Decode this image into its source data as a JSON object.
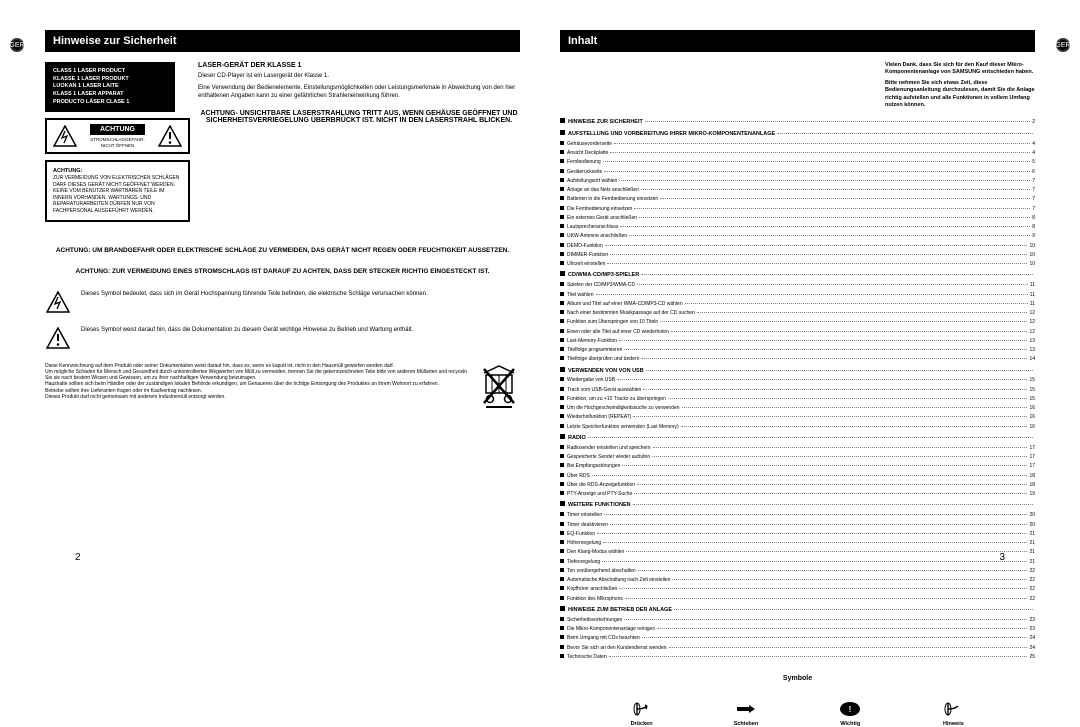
{
  "badge": "GER",
  "left": {
    "header": "Hinweise zur Sicherheit",
    "class1_lines": [
      "CLASS 1 LASER PRODUCT",
      "KLASSE 1 LASER PRODUKT",
      "LUOKAN 1 LASER LAITE",
      "KLASS 1 LASER APPARAT",
      "PRODUCTO LÁSER CLASE 1"
    ],
    "laser_heading": "LASER-GERÄT DER KLASSE 1",
    "laser_p1": "Dieser CD-Player ist ein Lasergerät der Klasse 1.",
    "laser_p2": "Eine Verwendung der Bedienelemente, Einstellungsmöglichkeiten oder Leistungsmerkmale in Abweichung von den hier enthaltenen Angaben kann zu einer gefährlichen Strahleneinwirkung führen.",
    "achtung_label": "ACHTUNG",
    "achtung_sub": "STROMSCHLAGGEFAHR. NICHT ÖFFNEN",
    "achtung_box_bold": "ACHTUNG:",
    "achtung_box_text": "ZUR VERMEIDUNG VON ELEKTRISCHEN SCHLÄGEN DARF DIESES GERÄT NICHT GEÖFFNET WERDEN. KEINE VOM BENUTZER WARTBAREN TEILE IM INNERN VORHANDEN. WARTUNGS- UND REPARATURARBEITEN DÜRFEN NUR VON FACHPERSONAL AUSGEFÜHRT WERDEN.",
    "warn_heading": "ACHTUNG- UNSICHTBARE LASERSTRAHLUNG TRITT AUS, WENN GEHÄUSE GEÖFFNET UND SICHERHEITSVERRIEGELUNG ÜBERBRÜCKT IST. NICHT IN DEN LASERSTRAHL BLICKEN.",
    "warn1": "ACHTUNG: UM BRANDGEFAHR ODER ELEKTRISCHE SCHLÄGE ZU VERMEIDEN, DAS GERÄT NICHT REGEN ODER FEUCHTIGKEIT AUSSETZEN.",
    "warn2": "ACHTUNG: ZUR VERMEIDUNG EINES STROMSCHLAGS IST DARAUF ZU ACHTEN, DASS DER STECKER RICHTIG EINGESTECKT IST.",
    "sym1": "Dieses Symbol bedeutet, dass sich im Gerät Hochspannung führende Teile befinden, die elektrische Schläge verursachen können.",
    "sym2": "Dieses Symbol weist darauf hin, dass die Dokumentation zu diesem Gerät wichtige Hinweise zu Betrieb und Wartung enthält.",
    "disposal": "Diese Kennzeichnung auf dem Produkt oder seiner Dokumentation weist darauf hin, dass es, wenn es kaputt ist, nicht in den Hausmüll geworfen werden darf.\nUm mögliche Schäden für Mensch und Gesundheit durch unkontrolliertes Wegwerfen von Müll zu vermeiden, trennen Sie die gekennzeichneten Teile bitte von anderen Müllarten und recyceln Sie sie nach bestem Wissen und Gewissen, um zu ihrer nachhaltigen Verwendung beizutragen.\nHaushalte sollten sich beim Händler oder der zuständigen lokalen Behörde erkundigen, um Genaueres über die richtige Entsorgung des Produktes an ihrem Wohnort zu erfahren.\nBetriebe sollten ihre Lieferanten fragen oder im Kaufvertrag nachlesen.\nDieses Produkt darf nicht gemeinsam mit anderem Industriemüll entsorgt werden.",
    "page_num": "2"
  },
  "right": {
    "header": "Inhalt",
    "thanks": "Vielen Dank, dass Sie sich für den Kauf dieser Mikro-Komponentenanlage von SAMSUNG entschieden haben.\n\nBitte nehmen Sie sich etwas Zeit, diese Bedienungsanleitung durchzulesen, damit Sie die Anlage richtig aufstellen und alle Funktionen in vollem Umfang nutzen können.",
    "toc": [
      {
        "type": "section",
        "label": "HINWEISE ZUR SICHERHEIT",
        "page": "2"
      },
      {
        "type": "section",
        "label": "AUFSTELLUNG UND VORBEREITUNG IHRER MIKRO-KOMPONENTENANLAGE",
        "page": ""
      },
      {
        "type": "item",
        "label": "Gehäusevorderseite",
        "page": "4"
      },
      {
        "type": "item",
        "label": "Ansicht Deckplatte",
        "page": "4"
      },
      {
        "type": "item",
        "label": "Fernbedienung",
        "page": "5"
      },
      {
        "type": "item",
        "label": "Geräterückseite",
        "page": "6"
      },
      {
        "type": "item",
        "label": "Aufstellungsort wählen",
        "page": "7"
      },
      {
        "type": "item",
        "label": "Anlage an das Netz anschließen",
        "page": "7"
      },
      {
        "type": "item",
        "label": "Batterien in die Fernbedienung einsetzen",
        "page": "7"
      },
      {
        "type": "item",
        "label": "Die Fernbedienung einsetzen",
        "page": "7"
      },
      {
        "type": "item",
        "label": "Ein externes Gerät anschließen",
        "page": "8"
      },
      {
        "type": "item",
        "label": "Lautsprecheranschluss",
        "page": "8"
      },
      {
        "type": "item",
        "label": "UKW-Antenne anschließen",
        "page": "9"
      },
      {
        "type": "item",
        "label": "DEMO-Funktion",
        "page": "10"
      },
      {
        "type": "item",
        "label": "DIMMER-Funktion",
        "page": "10"
      },
      {
        "type": "item",
        "label": "Uhrzeit einstellen",
        "page": "10"
      },
      {
        "type": "section",
        "label": "CD/WMA-CD/MP3-SPIELER",
        "page": ""
      },
      {
        "type": "item",
        "label": "Spielen der CD/MP3/WMA-CD",
        "page": "11"
      },
      {
        "type": "item",
        "label": "Titel wählen",
        "page": "11"
      },
      {
        "type": "item",
        "label": "Album und Titel auf einer WMA-CD/MP3-CD wählen",
        "page": "11"
      },
      {
        "type": "item",
        "label": "Nach einer bestimmten Musikpassage auf der CD suchen",
        "page": "12"
      },
      {
        "type": "item",
        "label": "Funktion zum Überspringen von 10 Titeln",
        "page": "12"
      },
      {
        "type": "item",
        "label": "Einen oder alle Titel auf einer CD wiederholen",
        "page": "12"
      },
      {
        "type": "item",
        "label": "Last-Memory-Funktion",
        "page": "13"
      },
      {
        "type": "item",
        "label": "Titelfolge programmieren",
        "page": "13"
      },
      {
        "type": "item",
        "label": "Titelfolge überprüfen und ändern",
        "page": "14"
      },
      {
        "type": "section",
        "label": "VERWENDEN VON VON USB",
        "page": ""
      },
      {
        "type": "item",
        "label": "Wiedergabe von USB",
        "page": "15"
      },
      {
        "type": "item",
        "label": "Track vom USB-Gerät auswählen",
        "page": "15"
      },
      {
        "type": "item",
        "label": "Funktion, um zu +10 Tracks zu überspringen",
        "page": "15"
      },
      {
        "type": "item",
        "label": "Um die Hochgeschwindigkeitssuche zu verwenden",
        "page": "16"
      },
      {
        "type": "item",
        "label": "Wiederholfunktion (REPEAT)",
        "page": "16"
      },
      {
        "type": "item",
        "label": "Letzte Speicherfunktion verwenden (Last Memory)",
        "page": "16"
      },
      {
        "type": "section",
        "label": "RADIO",
        "page": ""
      },
      {
        "type": "item",
        "label": "Radiosender einstellen und speichern",
        "page": "17"
      },
      {
        "type": "item",
        "label": "Gespeicherte Sender wieder aufrufen",
        "page": "17"
      },
      {
        "type": "item",
        "label": "Bei Empfangsstörungen",
        "page": "17"
      },
      {
        "type": "item",
        "label": "Über RDS",
        "page": "18"
      },
      {
        "type": "item",
        "label": "Über die RDS-Anzeigefunktion",
        "page": "18"
      },
      {
        "type": "item",
        "label": "PTY-Anzeige und PTY-Suche",
        "page": "19"
      },
      {
        "type": "section",
        "label": "WEITERE FUNKTIONEN",
        "page": ""
      },
      {
        "type": "item",
        "label": "Timer einstellen",
        "page": "20"
      },
      {
        "type": "item",
        "label": "Timer deaktivieren",
        "page": "20"
      },
      {
        "type": "item",
        "label": "EQ-Funktion",
        "page": "21"
      },
      {
        "type": "item",
        "label": "Höhenregelung",
        "page": "21"
      },
      {
        "type": "item",
        "label": "Den Klang-Modus wählen",
        "page": "21"
      },
      {
        "type": "item",
        "label": "Tiefenregelung",
        "page": "21"
      },
      {
        "type": "item",
        "label": "Ton vorübergehend abschalten",
        "page": "22"
      },
      {
        "type": "item",
        "label": "Automatische Abschaltung nach Zeit einstellen",
        "page": "22"
      },
      {
        "type": "item",
        "label": "Kopfhörer anschließen",
        "page": "22"
      },
      {
        "type": "item",
        "label": "Funktion des Mikrophons",
        "page": "22"
      },
      {
        "type": "section",
        "label": "HINWEISE ZUM BETRIEB DER ANLAGE",
        "page": ""
      },
      {
        "type": "item",
        "label": "Sicherheitsvorkehrungen",
        "page": "23"
      },
      {
        "type": "item",
        "label": "Die Mikro-Komponentenanlage reinigen",
        "page": "23"
      },
      {
        "type": "item",
        "label": "Beim Umgang mit CDs beachten",
        "page": "24"
      },
      {
        "type": "item",
        "label": "Bevor Sie sich an den Kundendienst wenden",
        "page": "24"
      },
      {
        "type": "item",
        "label": "Technische Daten",
        "page": "25"
      }
    ],
    "symbols_title": "Symbole",
    "symbols": [
      "Drücken",
      "Schieben",
      "Wichtig",
      "Hinweis"
    ],
    "page_num": "3"
  }
}
